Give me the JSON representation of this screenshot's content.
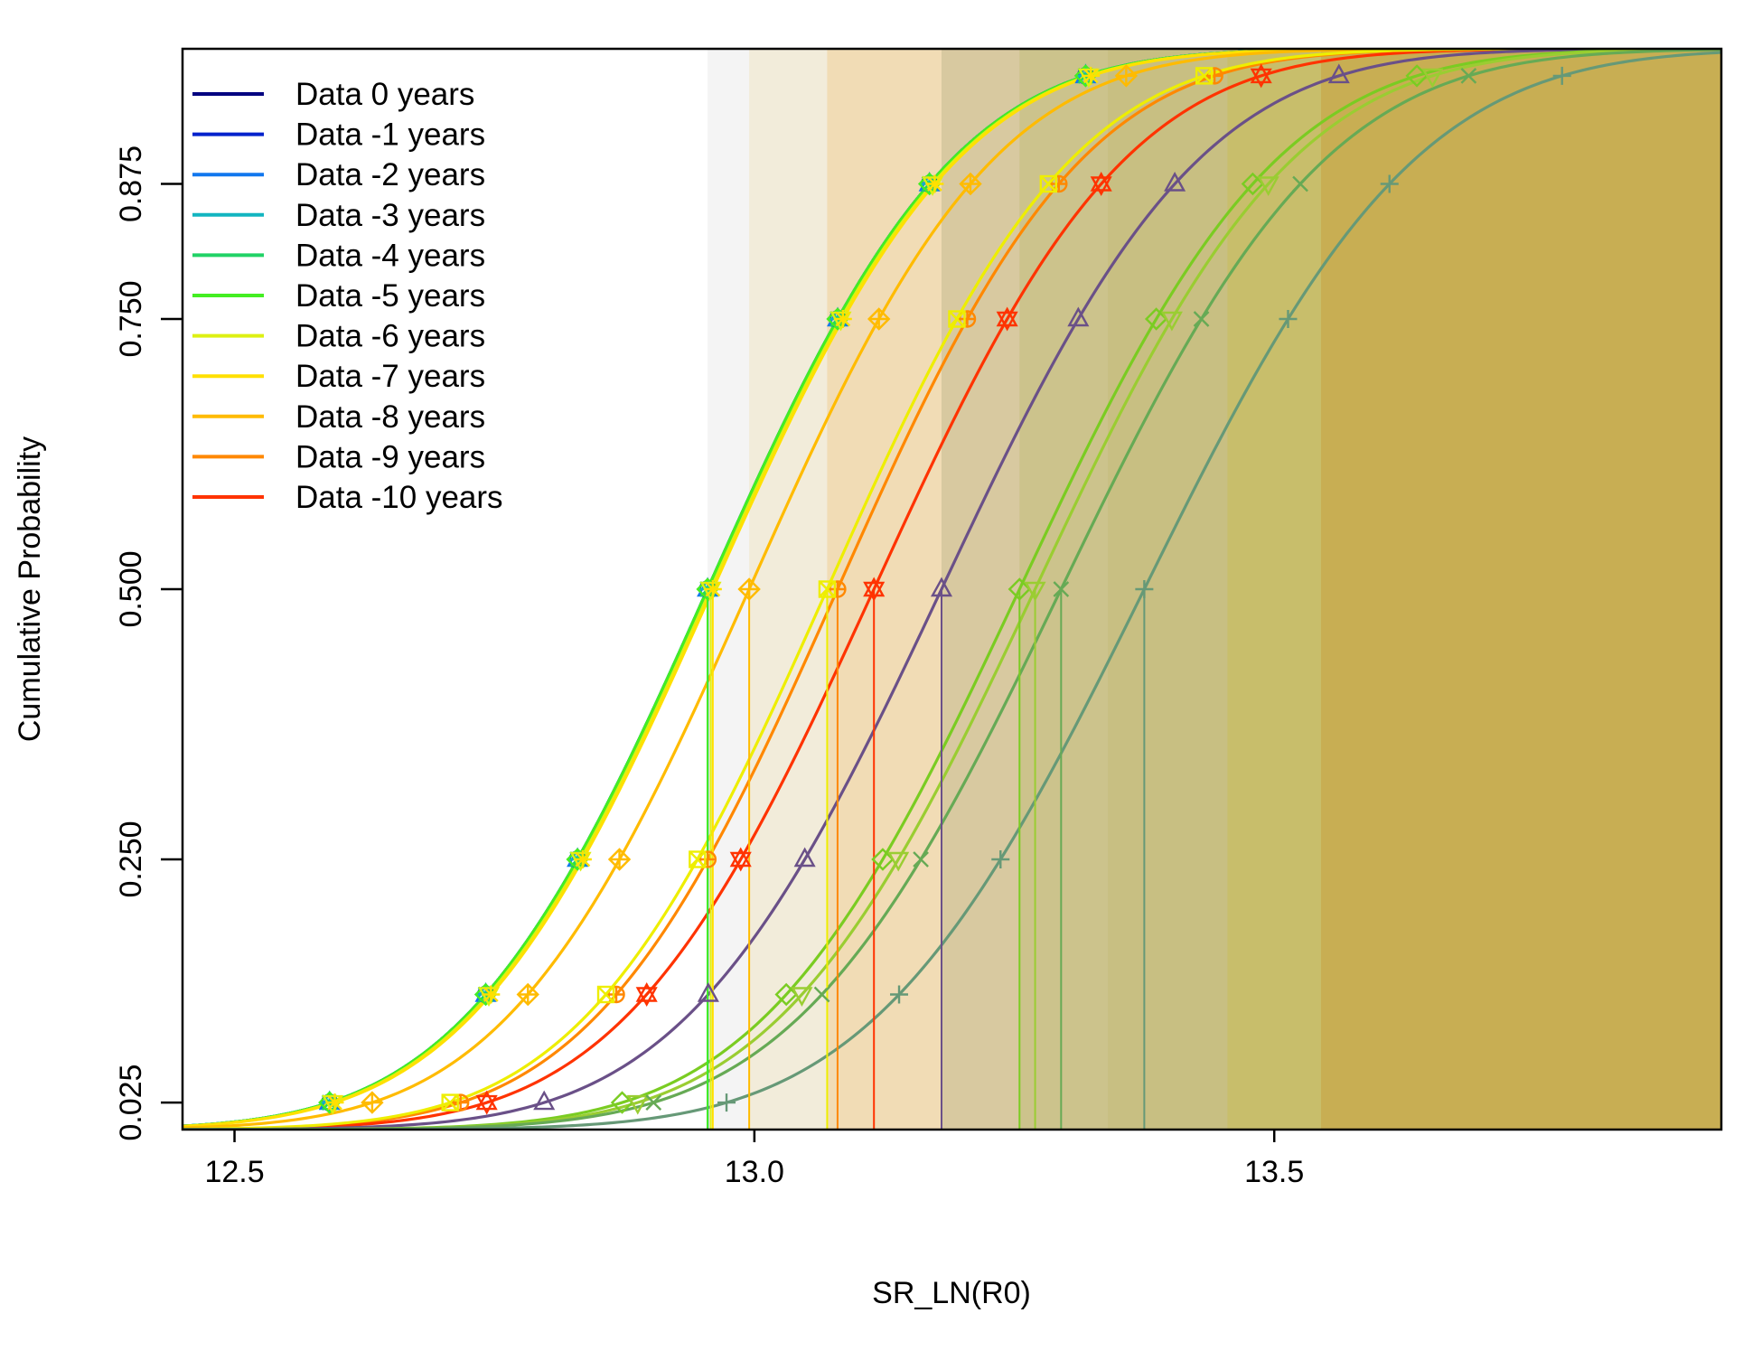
{
  "chart_data": {
    "type": "line",
    "title": "",
    "xlabel": "SR_LN(R0)",
    "ylabel": "Cumulative Probability",
    "xlim": [
      12.45,
      13.93
    ],
    "ylim": [
      0.0,
      1.0
    ],
    "x_ticks": [
      12.5,
      13.0,
      13.5
    ],
    "x_tick_labels": [
      "12.5",
      "13.0",
      "13.5"
    ],
    "y_ticks": [
      0.025,
      0.25,
      0.5,
      0.75,
      0.875
    ],
    "y_tick_labels": [
      "0.025",
      "0.250",
      "0.500",
      "0.750",
      "0.875"
    ],
    "marker_probs": [
      0.025,
      0.125,
      0.25,
      0.5,
      0.75,
      0.875,
      0.975
    ],
    "legend_position": "top-left",
    "legend": [
      {
        "name": "Data 0 years",
        "color": "#000080"
      },
      {
        "name": "Data -1 years",
        "color": "#0022CC"
      },
      {
        "name": "Data -2 years",
        "color": "#1177EE"
      },
      {
        "name": "Data -3 years",
        "color": "#12B5C0"
      },
      {
        "name": "Data -4 years",
        "color": "#20D266"
      },
      {
        "name": "Data -5 years",
        "color": "#44EE22"
      },
      {
        "name": "Data -6 years",
        "color": "#DDF012"
      },
      {
        "name": "Data -7 years",
        "color": "#FFE000"
      },
      {
        "name": "Data -8 years",
        "color": "#FFBB00"
      },
      {
        "name": "Data -9 years",
        "color": "#FF8800"
      },
      {
        "name": "Data -10 years",
        "color": "#FF3300"
      }
    ],
    "series": [
      {
        "name": "Data 0 years",
        "mean": 12.955,
        "sd": 0.1855,
        "color": "#000080",
        "marker": "circle"
      },
      {
        "name": "Data -1 years",
        "mean": 12.955,
        "sd": 0.1855,
        "color": "#0022CC",
        "marker": "circle"
      },
      {
        "name": "Data -2 years",
        "mean": 12.955,
        "sd": 0.1855,
        "color": "#1177EE",
        "marker": "triangle"
      },
      {
        "name": "Data -3 years",
        "mean": 12.955,
        "sd": 0.1855,
        "color": "#12B5C0",
        "marker": "plus"
      },
      {
        "name": "Data -4 years",
        "mean": 12.955,
        "sd": 0.1855,
        "color": "#20D266",
        "marker": "cross"
      },
      {
        "name": "Data -5 years",
        "mean": 12.955,
        "sd": 0.1855,
        "color": "#44EE22",
        "marker": "diamond"
      },
      {
        "name": "Data -6 years",
        "mean": 12.958,
        "sd": 0.1855,
        "color": "#DDF012",
        "marker": "triangle-down"
      },
      {
        "name": "Data -7 years",
        "mean": 12.96,
        "sd": 0.1855,
        "color": "#FFE000",
        "marker": "asterisk"
      },
      {
        "name": "Data -8 years",
        "mean": 12.995,
        "sd": 0.185,
        "color": "#FFBB00",
        "marker": "diamond-plus"
      },
      {
        "name": "Data -9 years",
        "mean": 13.08,
        "sd": 0.185,
        "color": "#FF8800",
        "marker": "circle-plus"
      },
      {
        "name": "Data -10 years",
        "mean": 13.115,
        "sd": 0.19,
        "color": "#FF3300",
        "marker": "star-of-david"
      },
      {
        "name": "",
        "mean": 13.07,
        "sd": 0.185,
        "color": "#EEEE00",
        "marker": "square-cross",
        "legend": false
      },
      {
        "name": "",
        "mean": 13.18,
        "sd": 0.195,
        "color": "#6A5088",
        "marker": "triangle",
        "legend": false
      },
      {
        "name": "",
        "mean": 13.255,
        "sd": 0.195,
        "color": "#7ACC22",
        "marker": "diamond",
        "legend": false
      },
      {
        "name": "",
        "mean": 13.27,
        "sd": 0.195,
        "color": "#9ACD32",
        "marker": "triangle-down",
        "legend": false
      },
      {
        "name": "",
        "mean": 13.295,
        "sd": 0.2,
        "color": "#66AA55",
        "marker": "cross",
        "legend": false
      },
      {
        "name": "",
        "mean": 13.375,
        "sd": 0.205,
        "color": "#669977",
        "marker": "plus",
        "legend": false
      }
    ],
    "bands": [
      {
        "x0": 12.955,
        "color": "#EEEEEE",
        "opacity": 0.65
      },
      {
        "x0": 12.995,
        "color": "#EEDDAA",
        "opacity": 0.35
      },
      {
        "x0": 13.07,
        "color": "#F0C070",
        "opacity": 0.35
      },
      {
        "x0": 13.18,
        "color": "#A0A070",
        "opacity": 0.3
      },
      {
        "x0": 13.255,
        "color": "#B8B868",
        "opacity": 0.35
      },
      {
        "x0": 13.34,
        "color": "#C0B870",
        "opacity": 0.35
      },
      {
        "x0": 13.455,
        "color": "#C8BC50",
        "opacity": 0.45
      },
      {
        "x0": 13.545,
        "color": "#C8A040",
        "opacity": 0.55
      }
    ]
  }
}
